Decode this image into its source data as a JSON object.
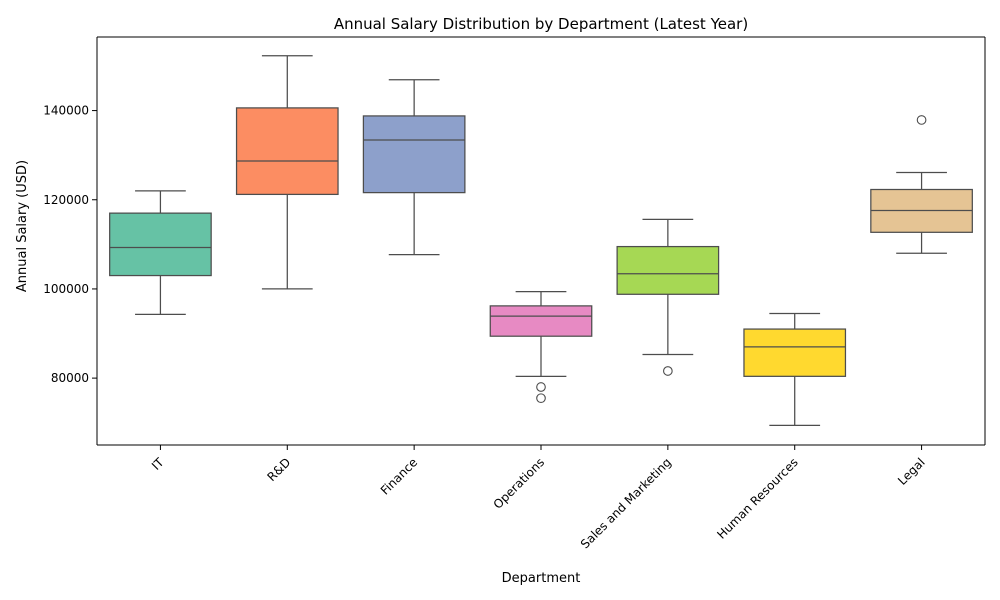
{
  "chart_data": {
    "type": "box",
    "title": "Annual Salary Distribution by Department (Latest Year)",
    "xlabel": "Department",
    "ylabel": "Annual Salary (USD)",
    "ylim": [
      65000,
      156500
    ],
    "yticks": [
      80000,
      100000,
      120000,
      140000
    ],
    "grid": false,
    "categories": [
      "IT",
      "R&D",
      "Finance",
      "Operations",
      "Sales and Marketing",
      "Human Resources",
      "Legal"
    ],
    "colors": [
      "#66c2a5",
      "#fc8d62",
      "#8da0cb",
      "#e78ac3",
      "#a6d854",
      "#ffd92f",
      "#e5c494"
    ],
    "boxes": [
      {
        "category": "IT",
        "whisker_low": 94300,
        "q1": 103000,
        "median": 109300,
        "q3": 117000,
        "whisker_high": 122000,
        "outliers": []
      },
      {
        "category": "R&D",
        "whisker_low": 100000,
        "q1": 121200,
        "median": 128700,
        "q3": 140600,
        "whisker_high": 152300,
        "outliers": []
      },
      {
        "category": "Finance",
        "whisker_low": 107700,
        "q1": 121600,
        "median": 133400,
        "q3": 138800,
        "whisker_high": 146900,
        "outliers": []
      },
      {
        "category": "Operations",
        "whisker_low": 80400,
        "q1": 89400,
        "median": 93900,
        "q3": 96200,
        "whisker_high": 99400,
        "outliers": [
          78000,
          75500
        ]
      },
      {
        "category": "Sales and Marketing",
        "whisker_low": 85300,
        "q1": 98800,
        "median": 103400,
        "q3": 109500,
        "whisker_high": 115600,
        "outliers": [
          81600
        ]
      },
      {
        "category": "Human Resources",
        "whisker_low": 69400,
        "q1": 80400,
        "median": 87000,
        "q3": 91000,
        "whisker_high": 94500,
        "outliers": []
      },
      {
        "category": "Legal",
        "whisker_low": 108000,
        "q1": 112700,
        "median": 117600,
        "q3": 122300,
        "whisker_high": 126100,
        "outliers": [
          137900
        ]
      }
    ]
  }
}
